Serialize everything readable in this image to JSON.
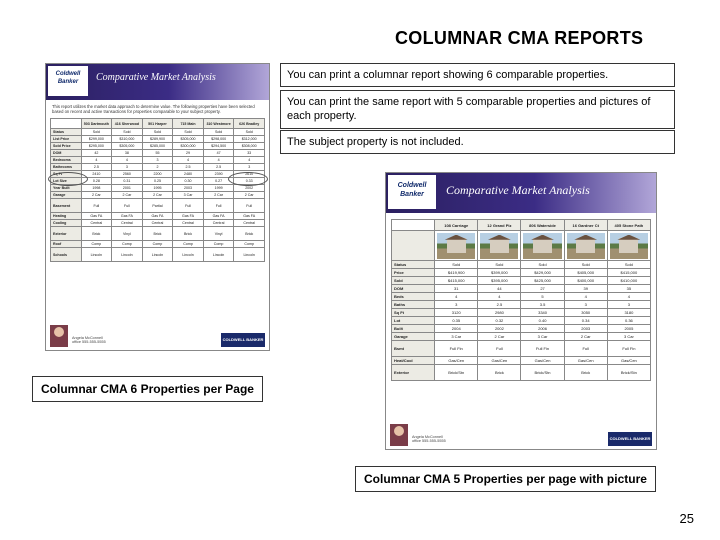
{
  "heading": "COLUMNAR CMA REPORTS",
  "descriptions": {
    "d1": "You can print a columnar report showing 6 comparable properties.",
    "d2": "You can print the same report with 5 comparable properties and pictures of each property.",
    "d3": "The subject property is not included."
  },
  "captions": {
    "left": "Columnar CMA 6 Properties per Page",
    "right": "Columnar CMA 5 Properties per page with picture"
  },
  "page_number": "25",
  "brand": {
    "line1": "Coldwell",
    "line2": "Banker"
  },
  "thumb_title": "Comparative Market Analysis",
  "intro_text": "This report utilizes the market data approach to determine value. The following properties have been selected based on recent and active transactions for properties comparable to your subject property.",
  "footer_badge": "COLDWELL BANKER",
  "agent": {
    "name": "Angela McConnell",
    "contact": "office 555-555-5555"
  },
  "colors": {
    "header_gradient_start": "#2b2060",
    "header_gradient_end": "#b1a6d8",
    "badge_bg": "#1a2a6a",
    "table_header_bg": "#ecebe4",
    "border": "#888888"
  },
  "left_report": {
    "columns": [
      "",
      "503 Dartmouth",
      "416 Sherwood",
      "501 Harper",
      "715 Main",
      "310 Westmore",
      "626 Bradley"
    ],
    "rows": [
      {
        "label": "Status",
        "vals": [
          "Sold",
          "Sold",
          "Sold",
          "Sold",
          "Sold",
          "Sold"
        ],
        "h": "short"
      },
      {
        "label": "List Price",
        "vals": [
          "$299,000",
          "$310,000",
          "$289,900",
          "$305,000",
          "$298,000",
          "$312,000"
        ],
        "h": "short"
      },
      {
        "label": "Sold Price",
        "vals": [
          "$295,000",
          "$305,000",
          "$285,000",
          "$300,000",
          "$294,500",
          "$308,000"
        ],
        "h": "short"
      },
      {
        "label": "DOM",
        "vals": [
          "42",
          "38",
          "55",
          "29",
          "47",
          "33"
        ],
        "h": "short"
      },
      {
        "label": "Bedrooms",
        "vals": [
          "4",
          "4",
          "3",
          "4",
          "4",
          "4"
        ],
        "h": "short"
      },
      {
        "label": "Bathrooms",
        "vals": [
          "2.5",
          "3",
          "2",
          "2.5",
          "2.5",
          "3"
        ],
        "h": "short"
      },
      {
        "label": "Sq Ft",
        "vals": [
          "2410",
          "2560",
          "2200",
          "2480",
          "2390",
          "2610"
        ],
        "h": "short"
      },
      {
        "label": "Lot Size",
        "vals": [
          "0.28",
          "0.31",
          "0.25",
          "0.30",
          "0.27",
          "0.33"
        ],
        "h": "short"
      },
      {
        "label": "Year Built",
        "vals": [
          "1998",
          "2001",
          "1995",
          "2003",
          "1999",
          "2002"
        ],
        "h": "short"
      },
      {
        "label": "Garage",
        "vals": [
          "2 Car",
          "2 Car",
          "2 Car",
          "3 Car",
          "2 Car",
          "2 Car"
        ],
        "h": "short"
      },
      {
        "label": "Basement",
        "vals": [
          "Full",
          "Full",
          "Partial",
          "Full",
          "Full",
          "Full"
        ],
        "h": "tall"
      },
      {
        "label": "Heating",
        "vals": [
          "Gas FA",
          "Gas FA",
          "Gas FA",
          "Gas FA",
          "Gas FA",
          "Gas FA"
        ],
        "h": "short"
      },
      {
        "label": "Cooling",
        "vals": [
          "Central",
          "Central",
          "Central",
          "Central",
          "Central",
          "Central"
        ],
        "h": "short"
      },
      {
        "label": "Exterior",
        "vals": [
          "Brick",
          "Vinyl",
          "Brick",
          "Brick",
          "Vinyl",
          "Brick"
        ],
        "h": "tall"
      },
      {
        "label": "Roof",
        "vals": [
          "Comp",
          "Comp",
          "Comp",
          "Comp",
          "Comp",
          "Comp"
        ],
        "h": "short"
      },
      {
        "label": "Schools",
        "vals": [
          "Lincoln",
          "Lincoln",
          "Lincoln",
          "Lincoln",
          "Lincoln",
          "Lincoln"
        ],
        "h": "tall"
      }
    ]
  },
  "right_report": {
    "columns": [
      "",
      "108 Carriage",
      "12 Grand Plz",
      "806 Waterside",
      "16 Gardner Ct",
      "405 Stone Path"
    ],
    "rows": [
      {
        "label": "Status",
        "vals": [
          "Sold",
          "Sold",
          "Sold",
          "Sold",
          "Sold"
        ],
        "h": "short"
      },
      {
        "label": "Price",
        "vals": [
          "$419,900",
          "$399,000",
          "$429,000",
          "$405,000",
          "$415,000"
        ],
        "h": "short"
      },
      {
        "label": "Sold",
        "vals": [
          "$415,000",
          "$395,000",
          "$425,000",
          "$400,000",
          "$410,000"
        ],
        "h": "short"
      },
      {
        "label": "DOM",
        "vals": [
          "31",
          "44",
          "27",
          "39",
          "35"
        ],
        "h": "short"
      },
      {
        "label": "Beds",
        "vals": [
          "4",
          "4",
          "5",
          "4",
          "4"
        ],
        "h": "short"
      },
      {
        "label": "Baths",
        "vals": [
          "3",
          "2.5",
          "3.5",
          "3",
          "3"
        ],
        "h": "short"
      },
      {
        "label": "Sq Ft",
        "vals": [
          "3120",
          "2980",
          "3340",
          "3050",
          "3180"
        ],
        "h": "short"
      },
      {
        "label": "Lot",
        "vals": [
          "0.35",
          "0.32",
          "0.40",
          "0.34",
          "0.36"
        ],
        "h": "short"
      },
      {
        "label": "Built",
        "vals": [
          "2004",
          "2002",
          "2006",
          "2003",
          "2005"
        ],
        "h": "short"
      },
      {
        "label": "Garage",
        "vals": [
          "3 Car",
          "2 Car",
          "3 Car",
          "2 Car",
          "3 Car"
        ],
        "h": "short"
      },
      {
        "label": "Bsmt",
        "vals": [
          "Full Fin",
          "Full",
          "Full Fin",
          "Full",
          "Full Fin"
        ],
        "h": "tall"
      },
      {
        "label": "Heat/Cool",
        "vals": [
          "Gas/Cen",
          "Gas/Cen",
          "Gas/Cen",
          "Gas/Cen",
          "Gas/Cen"
        ],
        "h": "short"
      },
      {
        "label": "Exterior",
        "vals": [
          "Brick/Stn",
          "Brick",
          "Brick/Stn",
          "Brick",
          "Brick/Stn"
        ],
        "h": "tall"
      }
    ]
  }
}
